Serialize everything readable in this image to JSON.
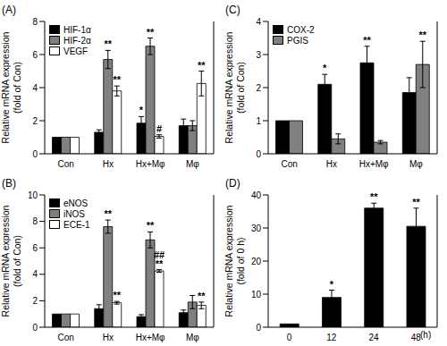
{
  "chart_data": [
    {
      "type": "bar",
      "title": "(A)",
      "y_label": "Relative mRNA expression (fold of Con)",
      "categories": [
        "Con",
        "Hx",
        "Hx+Mφ",
        "Mφ"
      ],
      "ylim": [
        0,
        8
      ],
      "yticks": [
        0,
        2,
        4,
        6,
        8
      ],
      "legend": "upper left",
      "series": [
        {
          "name": "HIF-1α",
          "color": "#000000",
          "values": [
            1,
            1.3,
            1.85,
            1.7
          ],
          "errors": [
            0,
            0.15,
            0.4,
            0.4
          ],
          "annotations": [
            null,
            null,
            "*",
            null
          ]
        },
        {
          "name": "HIF-2α",
          "color": "#808080",
          "values": [
            1,
            5.7,
            6.5,
            1.7
          ],
          "errors": [
            0,
            0.55,
            0.5,
            0.3
          ],
          "annotations": [
            null,
            "**",
            "**",
            null
          ]
        },
        {
          "name": "VEGF",
          "color": "#ffffff",
          "values": [
            1,
            3.8,
            1.05,
            4.25
          ],
          "errors": [
            0,
            0.3,
            0.1,
            0.75
          ],
          "annotations": [
            null,
            "**",
            "#",
            "**"
          ]
        }
      ]
    },
    {
      "type": "bar",
      "title": "(B)",
      "y_label": "Relative mRNA expression (fold of Con)",
      "categories": [
        "Con",
        "Hx",
        "Hx+Mφ",
        "Mφ"
      ],
      "ylim": [
        0,
        10
      ],
      "yticks": [
        0,
        2,
        4,
        6,
        8,
        10
      ],
      "legend": "upper left",
      "series": [
        {
          "name": "eNOS",
          "color": "#000000",
          "values": [
            1,
            1.4,
            0.8,
            1.1
          ],
          "errors": [
            0,
            0.3,
            0.15,
            0.2
          ],
          "annotations": [
            null,
            null,
            null,
            null
          ]
        },
        {
          "name": "iNOS",
          "color": "#808080",
          "values": [
            1,
            7.6,
            6.6,
            1.9
          ],
          "errors": [
            0,
            0.5,
            0.6,
            0.5
          ],
          "annotations": [
            null,
            "**",
            "**",
            null
          ]
        },
        {
          "name": "ECE-1",
          "color": "#ffffff",
          "values": [
            1,
            1.85,
            4.25,
            1.65
          ],
          "errors": [
            0,
            0.1,
            0.1,
            0.25
          ],
          "annotations": [
            null,
            "**",
            [
              "##",
              "**"
            ],
            "**"
          ]
        }
      ]
    },
    {
      "type": "bar",
      "title": "(C)",
      "y_label": "Relative mRNA expression (fold of Con)",
      "categories": [
        "Con",
        "Hx",
        "Hx+Mφ",
        "Mφ"
      ],
      "ylim": [
        0,
        4
      ],
      "yticks": [
        0,
        1,
        2,
        3,
        4
      ],
      "legend": "upper left",
      "series": [
        {
          "name": "COX-2",
          "color": "#000000",
          "values": [
            1,
            2.1,
            2.75,
            1.85
          ],
          "errors": [
            0,
            0.3,
            0.5,
            0.45
          ],
          "annotations": [
            null,
            "*",
            "**",
            null
          ]
        },
        {
          "name": "PGIS",
          "color": "#808080",
          "values": [
            1,
            0.45,
            0.35,
            2.7
          ],
          "errors": [
            0,
            0.15,
            0.05,
            0.7
          ],
          "annotations": [
            null,
            null,
            null,
            "**"
          ]
        }
      ]
    },
    {
      "type": "bar",
      "title": "(D)",
      "y_label": "Relative mRNA expression (fold of 0 h)",
      "x_label": "(h)",
      "categories": [
        "0",
        "12",
        "24",
        "48"
      ],
      "ylim": [
        0,
        40
      ],
      "yticks": [
        0,
        10,
        20,
        30,
        40
      ],
      "series": [
        {
          "color": "#000000",
          "values": [
            1,
            9,
            36,
            30.5
          ],
          "errors": [
            0,
            2.2,
            1.5,
            5.5
          ],
          "annotations": [
            null,
            "*",
            "**",
            "**"
          ]
        }
      ]
    }
  ]
}
